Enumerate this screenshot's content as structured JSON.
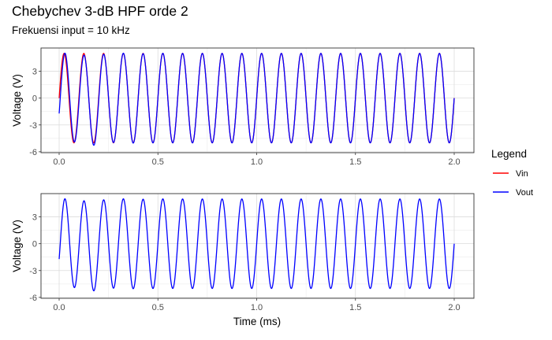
{
  "chart_data": {
    "type": "line",
    "title": "Chebychev 3-dB HPF orde 2",
    "subtitle": "Frekuensi input = 10 kHz",
    "xlabel": "Time (ms)",
    "legend": {
      "title": "Legend",
      "placement": "right",
      "entries": [
        {
          "label": "Vin",
          "color": "#ff0000"
        },
        {
          "label": "Vout",
          "color": "#0000ff"
        }
      ]
    },
    "x_ticks": [
      "0.0",
      "0.5",
      "1.0",
      "1.5",
      "2.0"
    ],
    "x_tick_values": [
      0,
      0.5,
      1.0,
      1.5,
      2.0
    ],
    "grid": true,
    "signal": {
      "frequency_khz": 10,
      "vin_amplitude": 5,
      "vout_steady_amplitude": 5.0,
      "xlim_data": [
        0,
        2.0
      ]
    },
    "panels": [
      {
        "ylabel": "Voltage (V)",
        "y_ticks": [
          "3",
          "0",
          "-3",
          "-6"
        ],
        "y_tick_values": [
          3,
          0,
          -3,
          -6
        ],
        "ylim": [
          -6.1,
          5.6
        ],
        "series": [
          {
            "name": "Vin",
            "color": "#ff0000"
          },
          {
            "name": "Vout",
            "color": "#0000ff"
          }
        ]
      },
      {
        "ylabel": "Voltage (V)",
        "y_ticks": [
          "3",
          "0",
          "-3",
          "-6"
        ],
        "y_tick_values": [
          3,
          0,
          -3,
          -6
        ],
        "ylim": [
          -6.1,
          5.6
        ],
        "series": [
          {
            "name": "Vout",
            "color": "#0000ff"
          }
        ]
      }
    ]
  }
}
